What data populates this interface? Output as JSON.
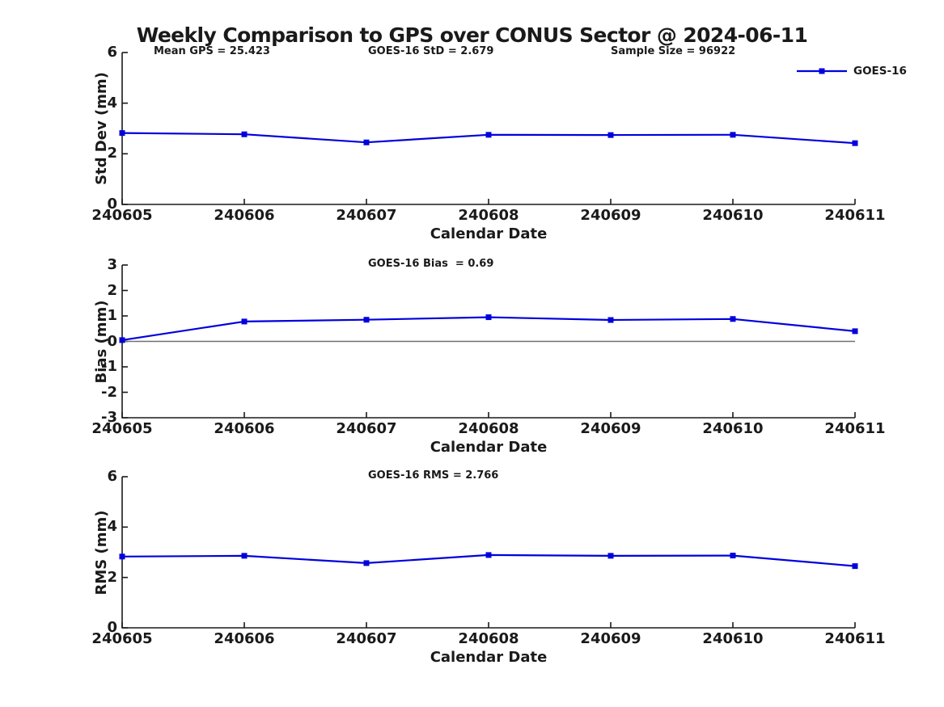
{
  "figure": {
    "title": "Weekly Comparison to GPS over CONUS Sector @ 2024-06-11",
    "legend_label": "GOES-16",
    "colors": {
      "series": "#0000dd",
      "zero_line": "#707070",
      "axis": "#1a1a1a",
      "text": "#1a1a1a"
    }
  },
  "chart_data": [
    {
      "type": "line",
      "ylabel": "Std Dev (mm)",
      "xlabel": "Calendar Date",
      "categories": [
        "240605",
        "240606",
        "240607",
        "240608",
        "240609",
        "240610",
        "240611"
      ],
      "series": [
        {
          "name": "GOES-16",
          "marker": "square",
          "values": [
            2.82,
            2.77,
            2.45,
            2.75,
            2.74,
            2.75,
            2.42
          ]
        }
      ],
      "ylim": [
        0,
        6
      ],
      "yticks": [
        0,
        2,
        4,
        6
      ],
      "grid": false,
      "zero_line": false,
      "legend_position": "top-right-outside",
      "annotations": [
        "Mean GPS = 25.423",
        "GOES-16 StD = 2.679",
        "Sample Size = 96922"
      ]
    },
    {
      "type": "line",
      "ylabel": "Bias (mm)",
      "xlabel": "Calendar Date",
      "categories": [
        "240605",
        "240606",
        "240607",
        "240608",
        "240609",
        "240610",
        "240611"
      ],
      "series": [
        {
          "name": "GOES-16",
          "marker": "square",
          "values": [
            0.05,
            0.78,
            0.85,
            0.95,
            0.84,
            0.88,
            0.4
          ]
        }
      ],
      "ylim": [
        -3,
        3
      ],
      "yticks": [
        3,
        2,
        1,
        0,
        -1,
        -2,
        -3
      ],
      "grid": false,
      "zero_line": true,
      "annotations": [
        "GOES-16 Bias  = 0.69"
      ]
    },
    {
      "type": "line",
      "ylabel": "RMS (mm)",
      "xlabel": "Calendar Date",
      "categories": [
        "240605",
        "240606",
        "240607",
        "240608",
        "240609",
        "240610",
        "240611"
      ],
      "series": [
        {
          "name": "GOES-16",
          "marker": "square",
          "values": [
            2.83,
            2.86,
            2.57,
            2.89,
            2.86,
            2.87,
            2.45
          ]
        }
      ],
      "ylim": [
        0,
        6
      ],
      "yticks": [
        0,
        2,
        4,
        6
      ],
      "grid": false,
      "zero_line": false,
      "annotations": [
        "GOES-16 RMS = 2.766"
      ]
    }
  ]
}
